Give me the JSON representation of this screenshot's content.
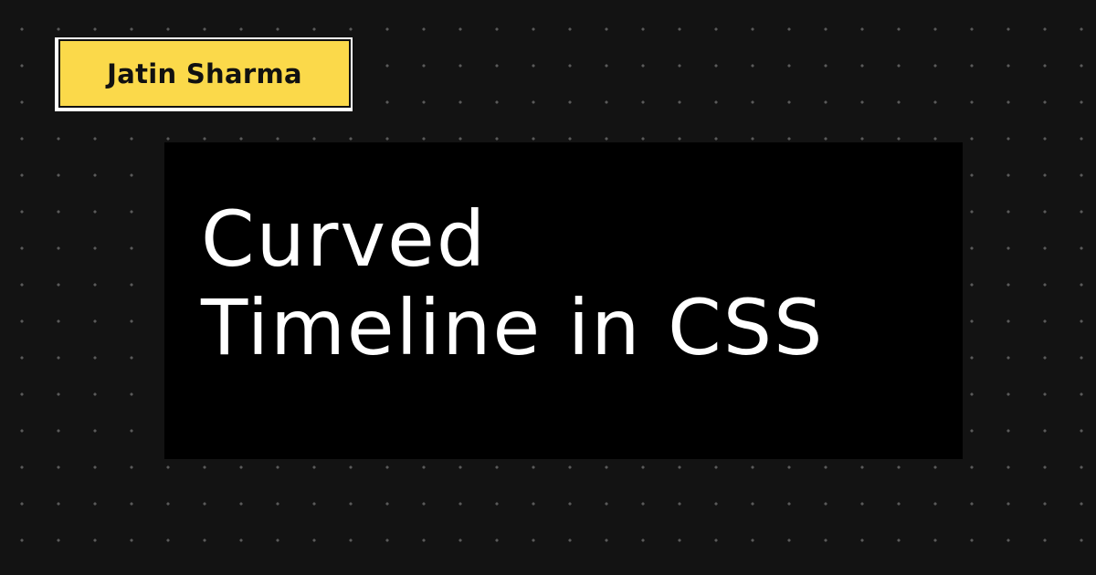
{
  "author": {
    "name": "Jatin Sharma"
  },
  "title": {
    "line1": "Curved",
    "line2": "Timeline in CSS"
  },
  "colors": {
    "background": "#131313",
    "dots": "#5a5a5a",
    "badge_fill": "#fbd94a",
    "badge_shadow": "#ffffff",
    "card": "#000000",
    "title_text": "#ffffff"
  }
}
